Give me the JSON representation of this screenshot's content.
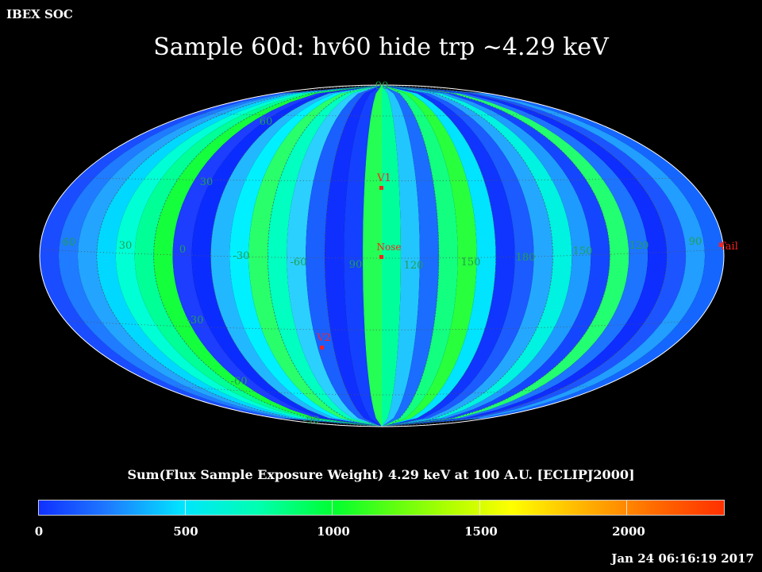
{
  "header": {
    "org_label": "IBEX SOC",
    "title": "Sample 60d: hv60 hide trp ~4.29 keV"
  },
  "map": {
    "projection": "Mollweide (ecliptic J2000)",
    "lat_labels": [
      "90",
      "60",
      "30",
      "-30",
      "-60",
      "-90"
    ],
    "lon_labels": [
      "60",
      "30",
      "0",
      "-30",
      "-60",
      "90",
      "120",
      "150",
      "180",
      "150",
      "120",
      "90"
    ],
    "markers": [
      {
        "label": "V1",
        "color": "#ff2020"
      },
      {
        "label": "Nose",
        "color": "#ff2020"
      },
      {
        "label": "V2",
        "color": "#ff2020"
      },
      {
        "label": "Tail",
        "color": "#ff2020"
      }
    ],
    "colors": {
      "grid": "#5a5a5a",
      "marker": "#ff2020",
      "graticule_label": "#1fa050"
    }
  },
  "colorbar": {
    "title": "Sum(Flux Sample Exposure Weight)  4.29 keV at 100 A.U. [ECLIPJ2000]",
    "tick_values": [
      "0",
      "500",
      "1000",
      "1500",
      "2000"
    ],
    "range": [
      0,
      2320
    ]
  },
  "footer": {
    "timestamp": "Jan 24 06:16:19 2017"
  }
}
